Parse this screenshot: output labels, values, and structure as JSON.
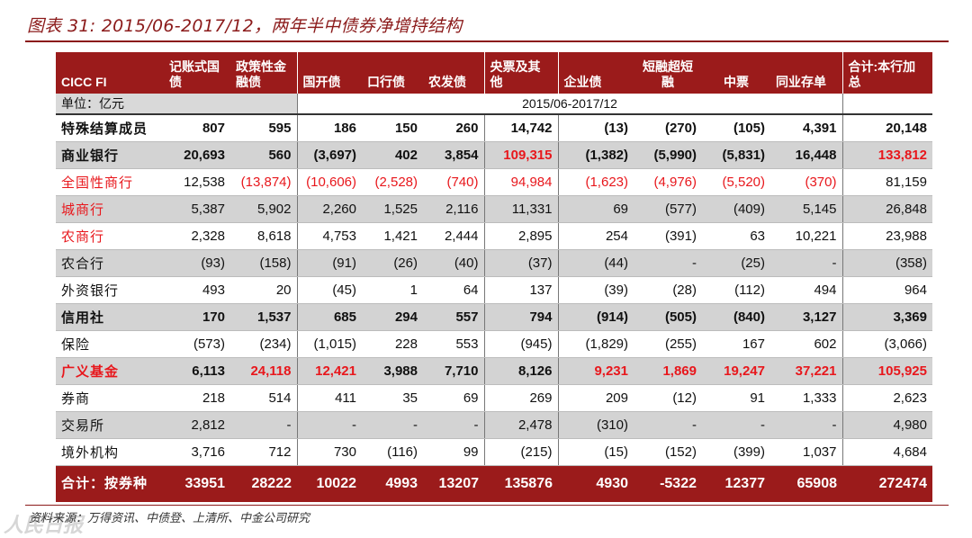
{
  "title": "图表 31: 2015/06-2017/12，两年半中债券净增持结构",
  "source": "资料来源：万得资讯、中债登、上清所、中金公司研究",
  "watermark": "人民日报",
  "header": {
    "corner": "CICC FI",
    "cols": [
      "记账式国债",
      "政策性金融债",
      "国开债",
      "口行债",
      "农发债",
      "央票及其他",
      "企业债",
      "短融超短融",
      "中票",
      "同业存单",
      "合计:本行加总"
    ]
  },
  "unit_label": "单位：亿元",
  "period": "2015/06-2017/12",
  "rows": [
    {
      "label": "特殊结算成员",
      "values": [
        "807",
        "595",
        "186",
        "150",
        "260",
        "14,742",
        "(13)",
        "(270)",
        "(105)",
        "4,391",
        "20,148"
      ]
    },
    {
      "label": "商业银行",
      "values": [
        "20,693",
        "560",
        "(3,697)",
        "402",
        "3,854",
        "109,315",
        "(1,382)",
        "(5,990)",
        "(5,831)",
        "16,448",
        "133,812"
      ]
    },
    {
      "label": "全国性商行",
      "values": [
        "12,538",
        "(13,874)",
        "(10,606)",
        "(2,528)",
        "(740)",
        "94,984",
        "(1,623)",
        "(4,976)",
        "(5,520)",
        "(370)",
        "81,159"
      ]
    },
    {
      "label": "城商行",
      "values": [
        "5,387",
        "5,902",
        "2,260",
        "1,525",
        "2,116",
        "11,331",
        "69",
        "(577)",
        "(409)",
        "5,145",
        "26,848"
      ]
    },
    {
      "label": "农商行",
      "values": [
        "2,328",
        "8,618",
        "4,753",
        "1,421",
        "2,444",
        "2,895",
        "254",
        "(391)",
        "63",
        "10,221",
        "23,988"
      ]
    },
    {
      "label": "农合行",
      "values": [
        "(93)",
        "(158)",
        "(91)",
        "(26)",
        "(40)",
        "(37)",
        "(44)",
        "-",
        "(25)",
        "-",
        "(358)"
      ]
    },
    {
      "label": "外资银行",
      "values": [
        "493",
        "20",
        "(45)",
        "1",
        "64",
        "137",
        "(39)",
        "(28)",
        "(112)",
        "494",
        "964"
      ]
    },
    {
      "label": "信用社",
      "values": [
        "170",
        "1,537",
        "685",
        "294",
        "557",
        "794",
        "(914)",
        "(505)",
        "(840)",
        "3,127",
        "3,369"
      ]
    },
    {
      "label": "保险",
      "values": [
        "(573)",
        "(234)",
        "(1,015)",
        "228",
        "553",
        "(945)",
        "(1,829)",
        "(255)",
        "167",
        "602",
        "(3,066)"
      ]
    },
    {
      "label": "广义基金",
      "values": [
        "6,113",
        "24,118",
        "12,421",
        "3,988",
        "7,710",
        "8,126",
        "9,231",
        "1,869",
        "19,247",
        "37,221",
        "105,925"
      ]
    },
    {
      "label": "券商",
      "values": [
        "218",
        "514",
        "411",
        "35",
        "69",
        "269",
        "209",
        "(12)",
        "91",
        "1,333",
        "2,623"
      ]
    },
    {
      "label": "交易所",
      "values": [
        "2,812",
        "-",
        "-",
        "-",
        "-",
        "2,478",
        "(310)",
        "-",
        "-",
        "-",
        "4,980"
      ]
    },
    {
      "label": "境外机构",
      "values": [
        "3,716",
        "712",
        "730",
        "(116)",
        "99",
        "(215)",
        "(15)",
        "(152)",
        "(399)",
        "1,037",
        "4,684"
      ]
    }
  ],
  "total": {
    "label": "合计：按券种",
    "values": [
      "33951",
      "28222",
      "10022",
      "4993",
      "13207",
      "135876",
      "4930",
      "-5322",
      "12377",
      "65908",
      "272474"
    ]
  },
  "colors": {
    "header_bg": "#9b1b1b",
    "accent_red": "#e8171c",
    "shade": "#d3d3d3"
  }
}
